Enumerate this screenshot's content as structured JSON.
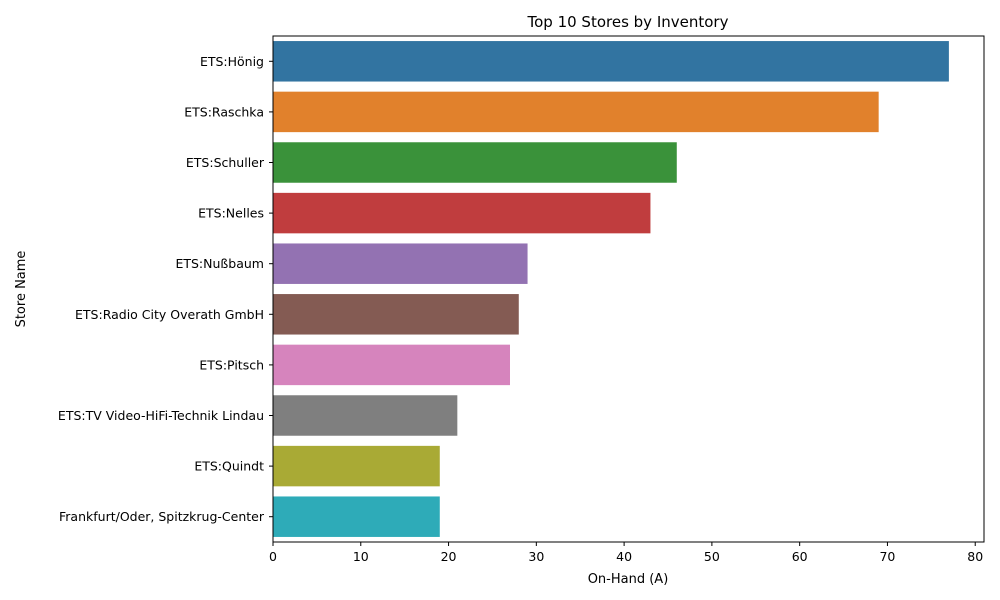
{
  "chart_data": {
    "type": "bar",
    "orientation": "horizontal",
    "title": "Top 10 Stores by Inventory",
    "xlabel": "On-Hand (A)",
    "ylabel": "Store Name",
    "xlim": [
      0,
      81
    ],
    "xticks": [
      0,
      10,
      20,
      30,
      40,
      50,
      60,
      70,
      80
    ],
    "grid": false,
    "categories": [
      "ETS:Hönig",
      "ETS:Raschka",
      "ETS:Schuller",
      "ETS:Nelles",
      "ETS:Nußbaum",
      "ETS:Radio City Overath GmbH",
      "ETS:Pitsch",
      "ETS:TV Video-HiFi-Technik Lindau",
      "ETS:Quindt",
      "Frankfurt/Oder, Spitzkrug-Center"
    ],
    "values": [
      77,
      69,
      46,
      43,
      29,
      28,
      27,
      21,
      19,
      19
    ],
    "colors": [
      "#3274a1",
      "#e1812c",
      "#3a923a",
      "#c03d3e",
      "#9372b2",
      "#845b53",
      "#d684bd",
      "#7f7f7f",
      "#a9aa35",
      "#2eabb8"
    ]
  }
}
